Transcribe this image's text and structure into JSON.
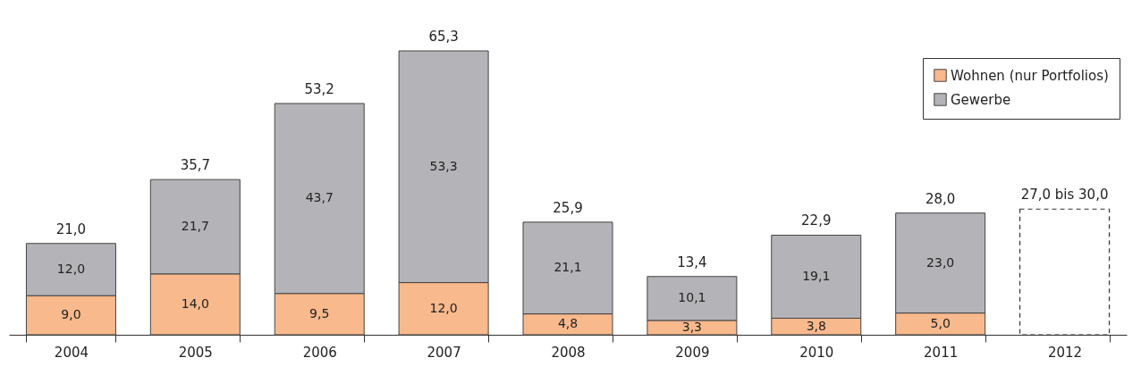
{
  "chart_data": {
    "type": "bar",
    "stacked": true,
    "categories": [
      "2004",
      "2005",
      "2006",
      "2007",
      "2008",
      "2009",
      "2010",
      "2011",
      "2012"
    ],
    "series": [
      {
        "name": "Wohnen (nur Portfolios)",
        "color": "#f8b98c",
        "values": [
          9.0,
          14.0,
          9.5,
          12.0,
          4.8,
          3.3,
          3.8,
          5.0,
          null
        ],
        "value_labels": [
          "9,0",
          "14,0",
          "9,5",
          "12,0",
          "4,8",
          "3,3",
          "3,8",
          "5,0",
          null
        ]
      },
      {
        "name": "Gewerbe",
        "color": "#b4b4b8",
        "values": [
          12.0,
          21.7,
          43.7,
          53.3,
          21.1,
          10.1,
          19.1,
          23.0,
          null
        ],
        "value_labels": [
          "12,0",
          "21,7",
          "43,7",
          "53,3",
          "21,1",
          "10,1",
          "19,1",
          "23,0",
          null
        ]
      },
      {
        "color": "#ffffff",
        "line_style": "dashed",
        "values": [
          null,
          null,
          null,
          null,
          null,
          null,
          null,
          null,
          28.9
        ],
        "value_labels": [
          null,
          null,
          null,
          null,
          null,
          null,
          null,
          null,
          null
        ]
      }
    ],
    "totals": [
      "21,0",
      "35,7",
      "53,2",
      "65,3",
      "25,9",
      "13,4",
      "22,9",
      "28,0",
      "27,0 bis 30,0"
    ],
    "legend": "top right",
    "tick_labels": "x",
    "grid": false
  }
}
